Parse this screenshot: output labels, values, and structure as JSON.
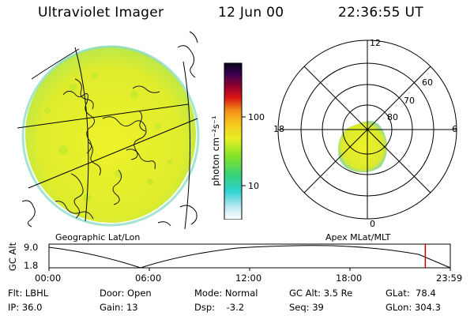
{
  "header": {
    "title": "Ultraviolet Imager",
    "date": "12 Jun 00",
    "time": "22:36:55 UT"
  },
  "colorbar": {
    "unit_label": "photon cm⁻²s⁻¹",
    "tick_100": "100",
    "tick_10": "10"
  },
  "left_panel": {
    "caption": "Geographic Lat/Lon"
  },
  "polar": {
    "caption": "Apex MLat/MLT",
    "mlt_12": "12",
    "mlt_18": "18",
    "mlt_6": "6",
    "mlt_0": "0",
    "lat_60": "60",
    "lat_70": "70",
    "lat_80": "80"
  },
  "timeline": {
    "ylabel": "GC Alt",
    "ytick_top": "9.0",
    "ytick_bottom": "1.8",
    "xticks": [
      "00:00",
      "06:00",
      "12:00",
      "18:00",
      "23:59"
    ],
    "current_time_fraction": 0.9377
  },
  "footer": {
    "flt": "Flt: LBHL",
    "ip": "IP: 36.0",
    "door": "Door: Open",
    "gain": "Gain: 13",
    "mode": "Mode: Normal",
    "dsp": "Dsp:    -3.2",
    "gcalt": "GC Alt: 3.5 Re",
    "seq": "Seq: 39",
    "glat": "GLat:  78.4",
    "glon": "GLon: 304.3"
  },
  "colors": {
    "accent_marker": "#cc0000",
    "emission": "#e6ef2a",
    "limb": "#7fd6c8"
  }
}
